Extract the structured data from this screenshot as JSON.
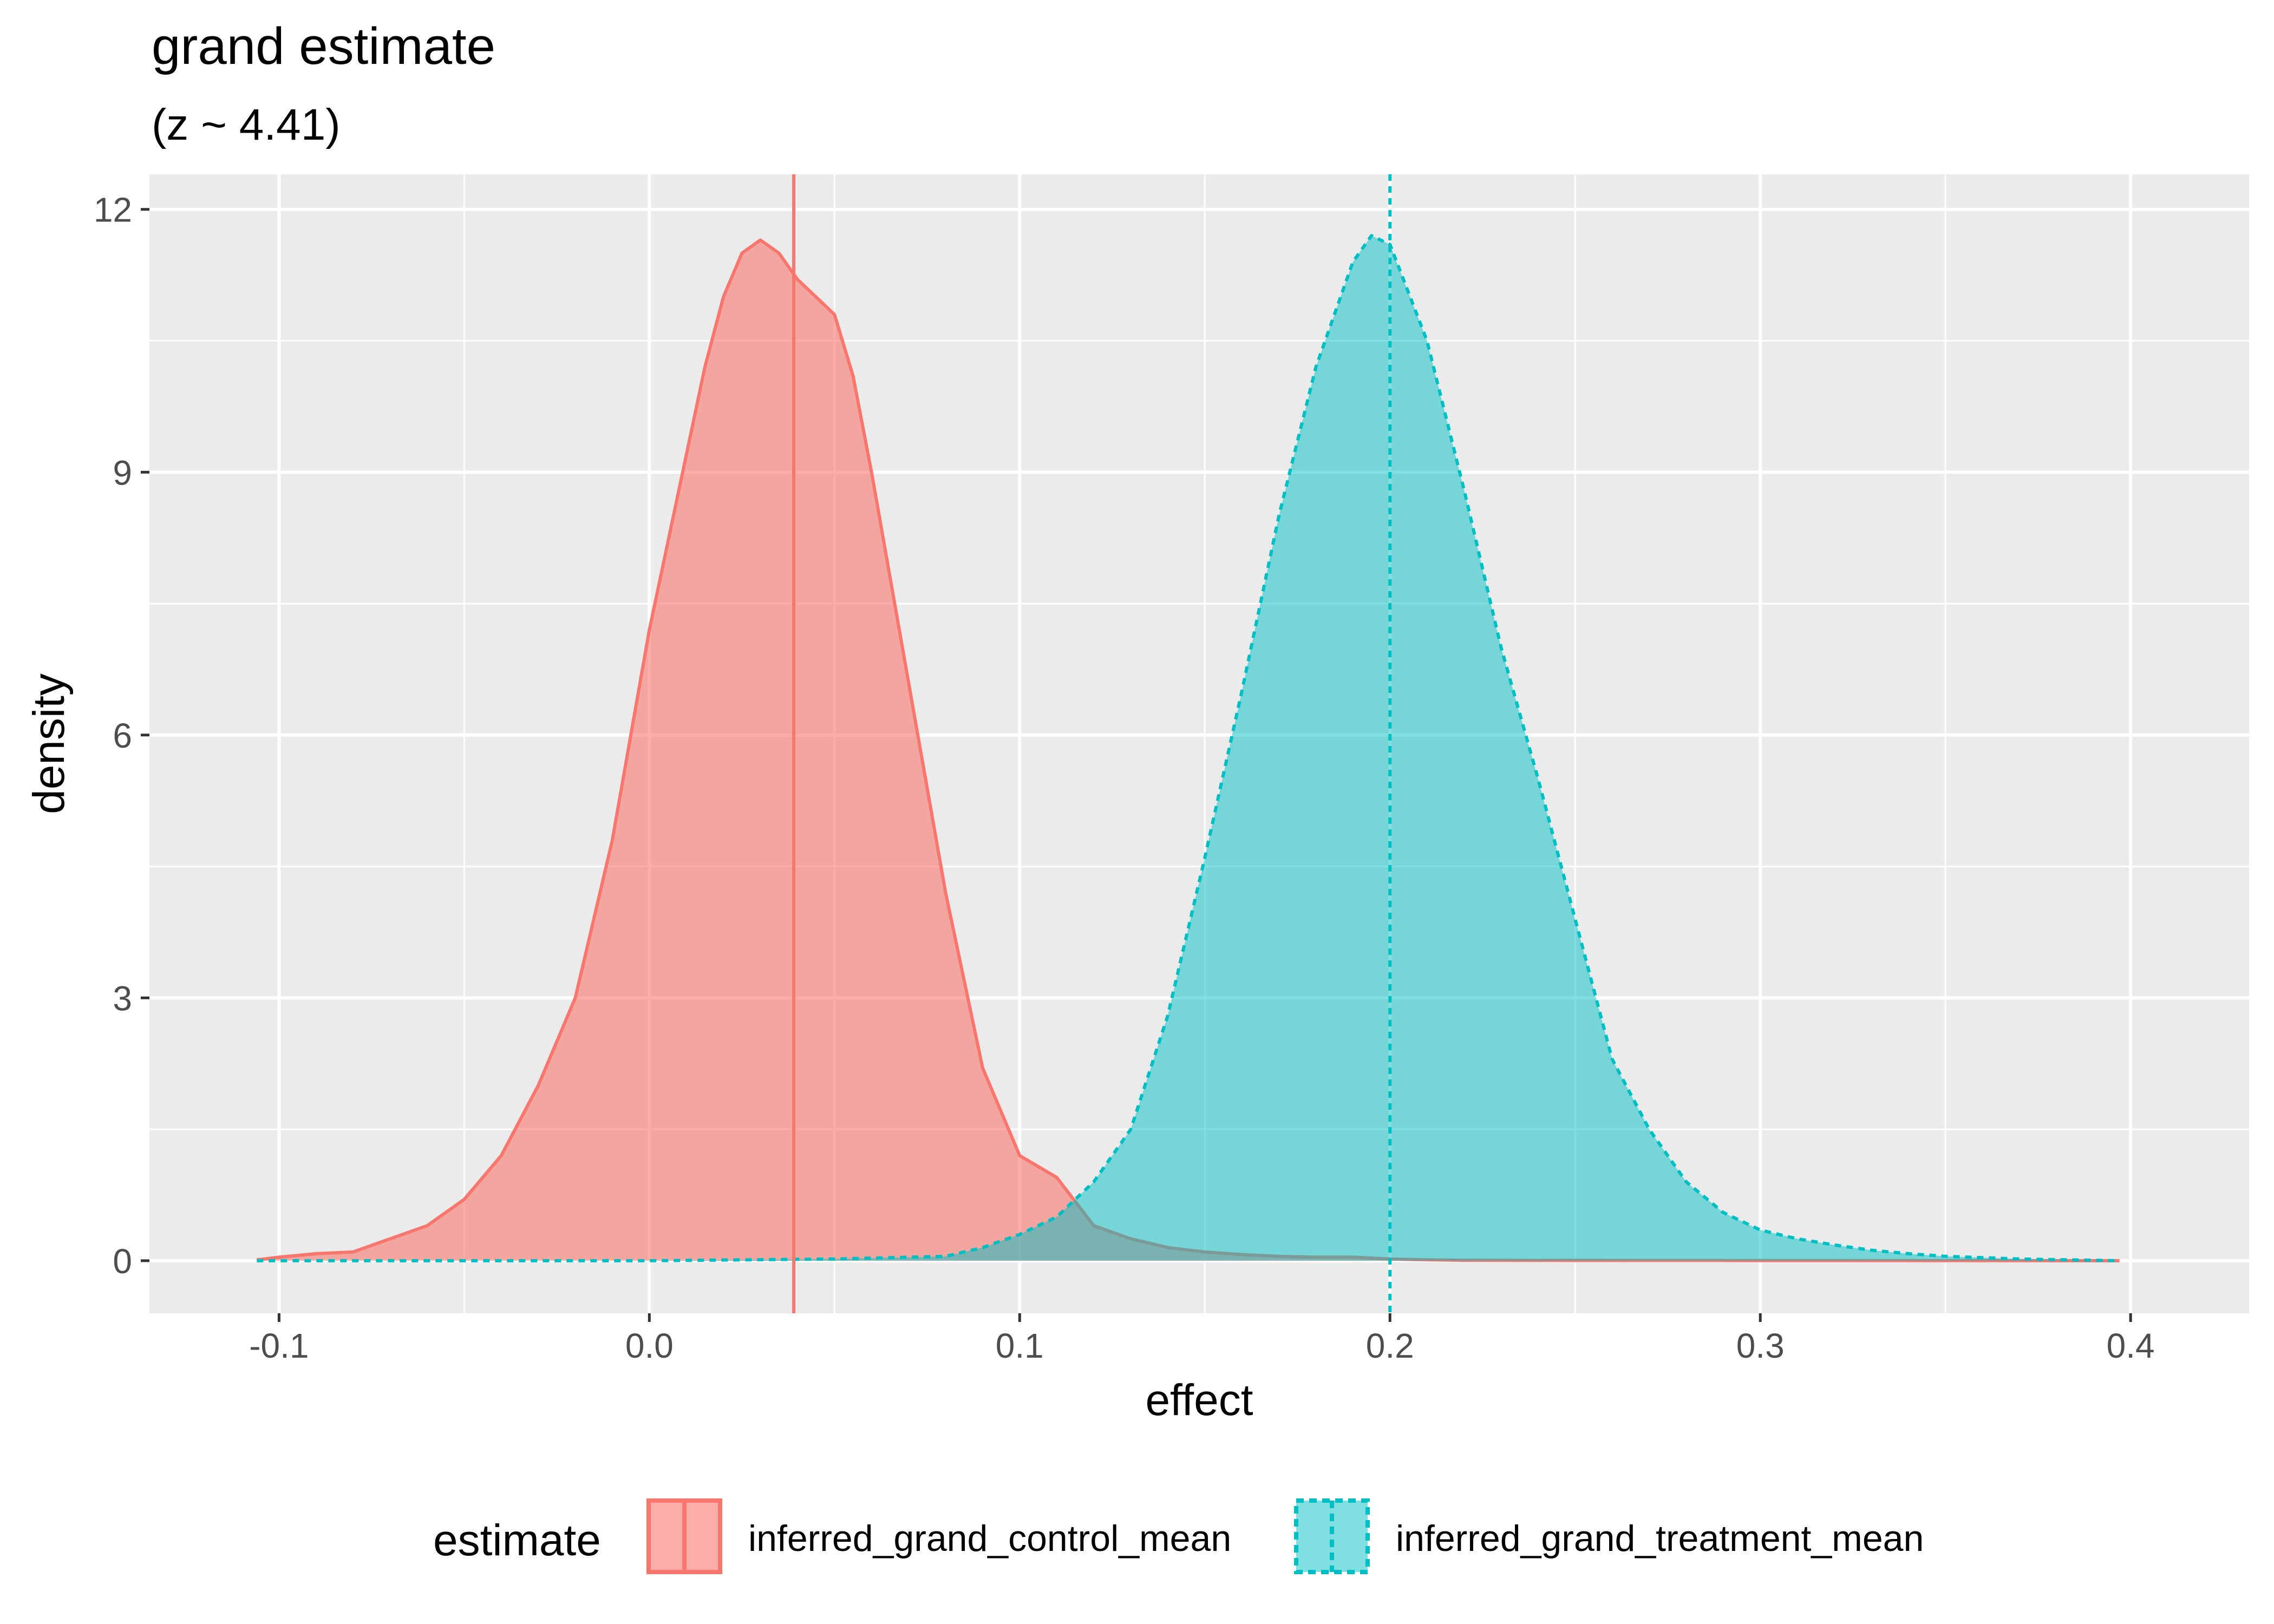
{
  "chart_data": {
    "type": "area",
    "title": "grand estimate",
    "subtitle": "(z ~  4.41)",
    "xlabel": "effect",
    "ylabel": "density",
    "xlim": [
      -0.135,
      0.432
    ],
    "ylim": [
      -0.6,
      12.4
    ],
    "x_ticks": [
      -0.1,
      0.0,
      0.1,
      0.2,
      0.3,
      0.4
    ],
    "x_tick_labels": [
      "-0.1",
      "0.0",
      "0.1",
      "0.2",
      "0.3",
      "0.4"
    ],
    "y_ticks": [
      0,
      3,
      6,
      9,
      12
    ],
    "y_tick_labels": [
      "0",
      "3",
      "6",
      "9",
      "12"
    ],
    "grid": true,
    "legend": {
      "title": "estimate",
      "position": "bottom",
      "entries": [
        "inferred_grand_control_mean",
        "inferred_grand_treatment_mean"
      ]
    },
    "series": [
      {
        "name": "inferred_grand_control_mean",
        "color": "#F8766D",
        "line_style": "solid",
        "mean": 0.039,
        "x": [
          -0.106,
          -0.1,
          -0.09,
          -0.08,
          -0.07,
          -0.06,
          -0.05,
          -0.04,
          -0.03,
          -0.02,
          -0.01,
          -0.005,
          0.0,
          0.005,
          0.01,
          0.015,
          0.02,
          0.025,
          0.03,
          0.035,
          0.04,
          0.045,
          0.05,
          0.055,
          0.06,
          0.065,
          0.07,
          0.08,
          0.09,
          0.1,
          0.11,
          0.12,
          0.13,
          0.14,
          0.15,
          0.16,
          0.17,
          0.18,
          0.19,
          0.2,
          0.21,
          0.22,
          0.25,
          0.3,
          0.35,
          0.397
        ],
        "y": [
          0.01,
          0.04,
          0.08,
          0.1,
          0.25,
          0.4,
          0.7,
          1.2,
          2.0,
          3.0,
          4.8,
          6.0,
          7.2,
          8.2,
          9.2,
          10.2,
          11.0,
          11.5,
          11.65,
          11.5,
          11.2,
          11.0,
          10.8,
          10.1,
          9.0,
          7.8,
          6.6,
          4.2,
          2.2,
          1.2,
          0.95,
          0.4,
          0.25,
          0.15,
          0.1,
          0.07,
          0.05,
          0.04,
          0.04,
          0.02,
          0.01,
          0.005,
          0.003,
          0.002,
          0.001,
          0.0
        ]
      },
      {
        "name": "inferred_grand_treatment_mean",
        "color": "#00BFC4",
        "line_style": "dashed",
        "mean": 0.2,
        "x": [
          -0.106,
          0.0,
          0.05,
          0.08,
          0.09,
          0.1,
          0.11,
          0.12,
          0.13,
          0.14,
          0.15,
          0.16,
          0.17,
          0.18,
          0.19,
          0.195,
          0.2,
          0.21,
          0.22,
          0.23,
          0.24,
          0.25,
          0.26,
          0.27,
          0.28,
          0.29,
          0.3,
          0.31,
          0.32,
          0.33,
          0.34,
          0.35,
          0.37,
          0.397
        ],
        "y": [
          0.0,
          0.0,
          0.02,
          0.05,
          0.15,
          0.3,
          0.5,
          0.9,
          1.5,
          2.8,
          4.6,
          6.5,
          8.5,
          10.2,
          11.4,
          11.7,
          11.6,
          10.5,
          8.8,
          7.0,
          5.5,
          3.9,
          2.3,
          1.5,
          0.9,
          0.55,
          0.35,
          0.25,
          0.18,
          0.12,
          0.08,
          0.05,
          0.02,
          0.0
        ]
      }
    ]
  }
}
